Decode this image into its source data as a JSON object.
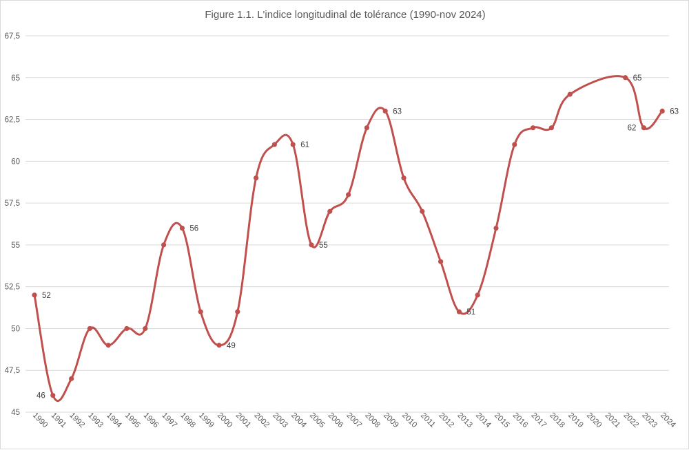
{
  "chart_data": {
    "type": "line",
    "title": "Figure 1.1. L'indice longitudinal de tolérance (1990-nov 2024)",
    "xlabel": "",
    "ylabel": "",
    "categories": [
      "1990",
      "1991",
      "1992",
      "1993",
      "1994",
      "1995",
      "1996",
      "1997",
      "1998",
      "1999",
      "2000",
      "2001",
      "2002",
      "2003",
      "2004",
      "2005",
      "2006",
      "2007",
      "2008",
      "2009",
      "2010",
      "2011",
      "2012",
      "2013",
      "2014",
      "2015",
      "2016",
      "2017",
      "2018",
      "2019",
      "2020",
      "2021",
      "2022",
      "2023",
      "2024"
    ],
    "series": [
      {
        "values": [
          52,
          46,
          47,
          50,
          49,
          50,
          50,
          55,
          56,
          51,
          49,
          51,
          59,
          61,
          61,
          55,
          57,
          58,
          62,
          63,
          59,
          57,
          54,
          51,
          52,
          56,
          61,
          62,
          62,
          64,
          null,
          null,
          65,
          62,
          63
        ],
        "color": "#c0504d",
        "smooth": true
      }
    ],
    "y_ticks": [
      "45",
      "47,5",
      "50",
      "52,5",
      "55",
      "57,5",
      "60",
      "62,5",
      "65",
      "67,5"
    ],
    "ylim": [
      45,
      67.5
    ],
    "grid": "horizontal",
    "legend": "none",
    "data_labels": [
      {
        "index": 0,
        "text": "52",
        "pos": "right"
      },
      {
        "index": 1,
        "text": "46",
        "pos": "left"
      },
      {
        "index": 8,
        "text": "56",
        "pos": "right"
      },
      {
        "index": 10,
        "text": "49",
        "pos": "right"
      },
      {
        "index": 14,
        "text": "61",
        "pos": "right"
      },
      {
        "index": 15,
        "text": "55",
        "pos": "right"
      },
      {
        "index": 19,
        "text": "63",
        "pos": "right"
      },
      {
        "index": 23,
        "text": "51",
        "pos": "right"
      },
      {
        "index": 32,
        "text": "65",
        "pos": "right"
      },
      {
        "index": 33,
        "text": "62",
        "pos": "left"
      },
      {
        "index": 34,
        "text": "63",
        "pos": "right"
      }
    ]
  }
}
